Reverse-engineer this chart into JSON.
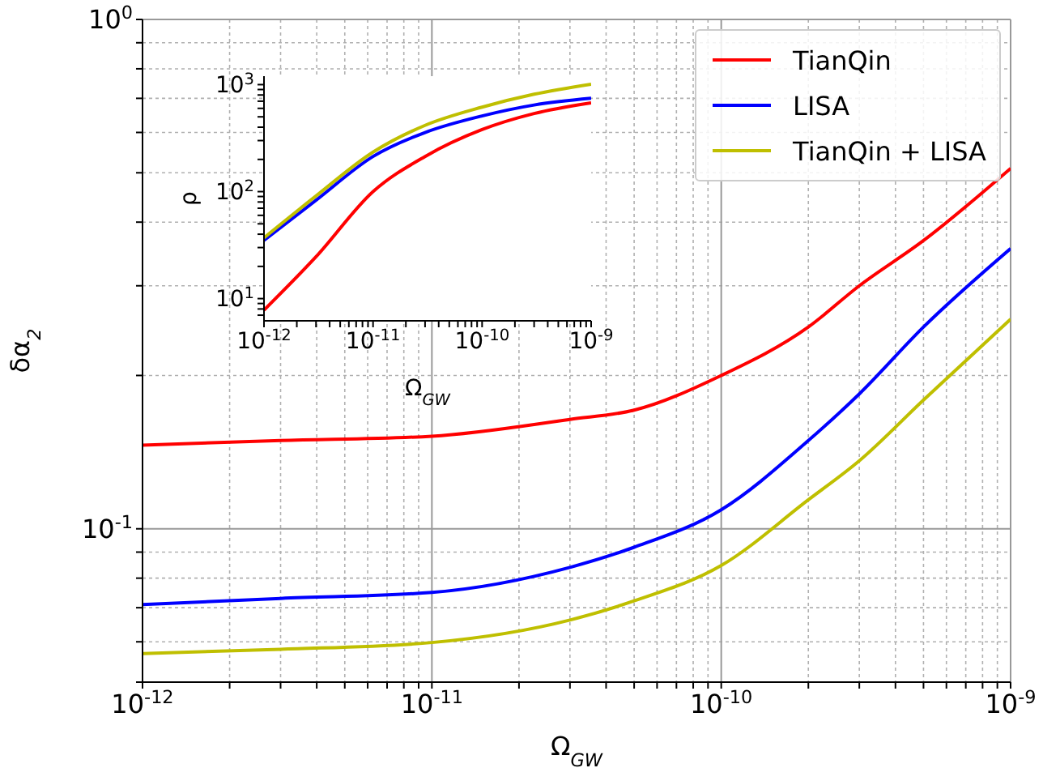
{
  "chart_data": [
    {
      "type": "line",
      "xlabel": "Ω$_{GW}$",
      "ylabel": "δα$_{2}$",
      "log": "xy",
      "grid": true,
      "legend": "top right",
      "x": [
        1e-12,
        3e-12,
        1e-11,
        3e-11,
        5e-11,
        1e-10,
        2e-10,
        3e-10,
        5e-10,
        1e-09
      ],
      "series": [
        {
          "name": "TianQin",
          "color": "#ff0000",
          "values": [
            0.146,
            0.149,
            0.152,
            0.164,
            0.171,
            0.2,
            0.249,
            0.3,
            0.368,
            0.51
          ]
        },
        {
          "name": "LISA",
          "color": "#0000ff",
          "values": [
            0.071,
            0.073,
            0.075,
            0.084,
            0.092,
            0.109,
            0.149,
            0.184,
            0.249,
            0.355
          ]
        },
        {
          "name": "TianQin + LISA",
          "color": "#bfbf00",
          "values": [
            0.0569,
            0.058,
            0.0598,
            0.0662,
            0.0722,
            0.0847,
            0.114,
            0.136,
            0.179,
            0.258
          ]
        }
      ],
      "xlim": [
        1e-12,
        1e-09
      ],
      "xticks": [
        {
          "value": 1e-12,
          "label": "10$^{-12}$"
        },
        {
          "value": 2e-12,
          "label": null
        },
        {
          "value": 3e-12,
          "label": null
        },
        {
          "value": 4e-12,
          "label": null
        },
        {
          "value": 5e-12,
          "label": null
        },
        {
          "value": 6e-12,
          "label": null
        },
        {
          "value": 7e-12,
          "label": null
        },
        {
          "value": 8e-12,
          "label": null
        },
        {
          "value": 9e-12,
          "label": null
        },
        {
          "value": 1e-11,
          "label": "10$^{-11}$"
        },
        {
          "value": 2e-11,
          "label": null
        },
        {
          "value": 3e-11,
          "label": null
        },
        {
          "value": 4e-11,
          "label": null
        },
        {
          "value": 5e-11,
          "label": null
        },
        {
          "value": 6e-11,
          "label": null
        },
        {
          "value": 7e-11,
          "label": null
        },
        {
          "value": 8e-11,
          "label": null
        },
        {
          "value": 9e-11,
          "label": null
        },
        {
          "value": 1e-10,
          "label": "10$^{-10}$"
        },
        {
          "value": 2e-10,
          "label": null
        },
        {
          "value": 3e-10,
          "label": null
        },
        {
          "value": 4e-10,
          "label": null
        },
        {
          "value": 5e-10,
          "label": null
        },
        {
          "value": 6e-10,
          "label": null
        },
        {
          "value": 7e-10,
          "label": null
        },
        {
          "value": 8e-10,
          "label": null
        },
        {
          "value": 9e-10,
          "label": null
        },
        {
          "value": 1e-09,
          "label": "10$^{-9}$"
        }
      ],
      "ylim": [
        0.05,
        1
      ],
      "yticks": [
        {
          "value": 0.05,
          "label": null
        },
        {
          "value": 0.06,
          "label": null
        },
        {
          "value": 0.07,
          "label": null
        },
        {
          "value": 0.08,
          "label": null
        },
        {
          "value": 0.09,
          "label": null
        },
        {
          "value": 0.1,
          "label": "10$^{-1}$"
        },
        {
          "value": 0.2,
          "label": null
        },
        {
          "value": 0.3,
          "label": null
        },
        {
          "value": 0.4,
          "label": null
        },
        {
          "value": 0.5,
          "label": null
        },
        {
          "value": 0.6,
          "label": null
        },
        {
          "value": 0.7,
          "label": null
        },
        {
          "value": 0.8,
          "label": null
        },
        {
          "value": 0.9,
          "label": null
        },
        {
          "value": 1,
          "label": "10$^{0}$"
        }
      ]
    },
    {
      "type": "line",
      "xlabel": "Ω$_{GW}$",
      "ylabel": "ρ",
      "log": "xy",
      "x": [
        1e-12,
        3e-12,
        1e-11,
        3e-11,
        1e-10,
        3e-10,
        1e-09
      ],
      "series": [
        {
          "color": "#ff0000",
          "values": [
            7.8,
            24.6,
            100,
            213,
            380,
            537,
            676
          ]
        },
        {
          "color": "#0000ff",
          "values": [
            35,
            83,
            213,
            357,
            510,
            645,
            745
          ]
        },
        {
          "color": "#bfbf00",
          "values": [
            37,
            91,
            234,
            416,
            616,
            813,
            1010
          ]
        }
      ],
      "xlim": [
        1e-12,
        1e-09
      ],
      "xticks": [
        {
          "value": 1e-12,
          "label": "10$^{-12}$"
        },
        {
          "value": 2e-12,
          "label": null
        },
        {
          "value": 3e-12,
          "label": null
        },
        {
          "value": 4e-12,
          "label": null
        },
        {
          "value": 5e-12,
          "label": null
        },
        {
          "value": 6e-12,
          "label": null
        },
        {
          "value": 7e-12,
          "label": null
        },
        {
          "value": 8e-12,
          "label": null
        },
        {
          "value": 9e-12,
          "label": null
        },
        {
          "value": 1e-11,
          "label": "10$^{-11}$"
        },
        {
          "value": 2e-11,
          "label": null
        },
        {
          "value": 3e-11,
          "label": null
        },
        {
          "value": 4e-11,
          "label": null
        },
        {
          "value": 5e-11,
          "label": null
        },
        {
          "value": 6e-11,
          "label": null
        },
        {
          "value": 7e-11,
          "label": null
        },
        {
          "value": 8e-11,
          "label": null
        },
        {
          "value": 9e-11,
          "label": null
        },
        {
          "value": 1e-10,
          "label": "10$^{-10}$"
        },
        {
          "value": 2e-10,
          "label": null
        },
        {
          "value": 3e-10,
          "label": null
        },
        {
          "value": 4e-10,
          "label": null
        },
        {
          "value": 5e-10,
          "label": null
        },
        {
          "value": 6e-10,
          "label": null
        },
        {
          "value": 7e-10,
          "label": null
        },
        {
          "value": 8e-10,
          "label": null
        },
        {
          "value": 9e-10,
          "label": null
        },
        {
          "value": 1e-09,
          "label": "10$^{-9}$"
        }
      ],
      "ylim": [
        6.2,
        1200
      ],
      "yticks": [
        {
          "value": 7,
          "label": null
        },
        {
          "value": 8,
          "label": null
        },
        {
          "value": 9,
          "label": null
        },
        {
          "value": 10,
          "label": "10$^{1}$"
        },
        {
          "value": 20,
          "label": null
        },
        {
          "value": 30,
          "label": null
        },
        {
          "value": 40,
          "label": null
        },
        {
          "value": 50,
          "label": null
        },
        {
          "value": 60,
          "label": null
        },
        {
          "value": 70,
          "label": null
        },
        {
          "value": 80,
          "label": null
        },
        {
          "value": 90,
          "label": null
        },
        {
          "value": 100,
          "label": "10$^{2}$"
        },
        {
          "value": 200,
          "label": null
        },
        {
          "value": 300,
          "label": null
        },
        {
          "value": 400,
          "label": null
        },
        {
          "value": 500,
          "label": null
        },
        {
          "value": 600,
          "label": null
        },
        {
          "value": 700,
          "label": null
        },
        {
          "value": 800,
          "label": null
        },
        {
          "value": 900,
          "label": null
        },
        {
          "value": 1000,
          "label": "10$^{3}$"
        }
      ]
    }
  ]
}
